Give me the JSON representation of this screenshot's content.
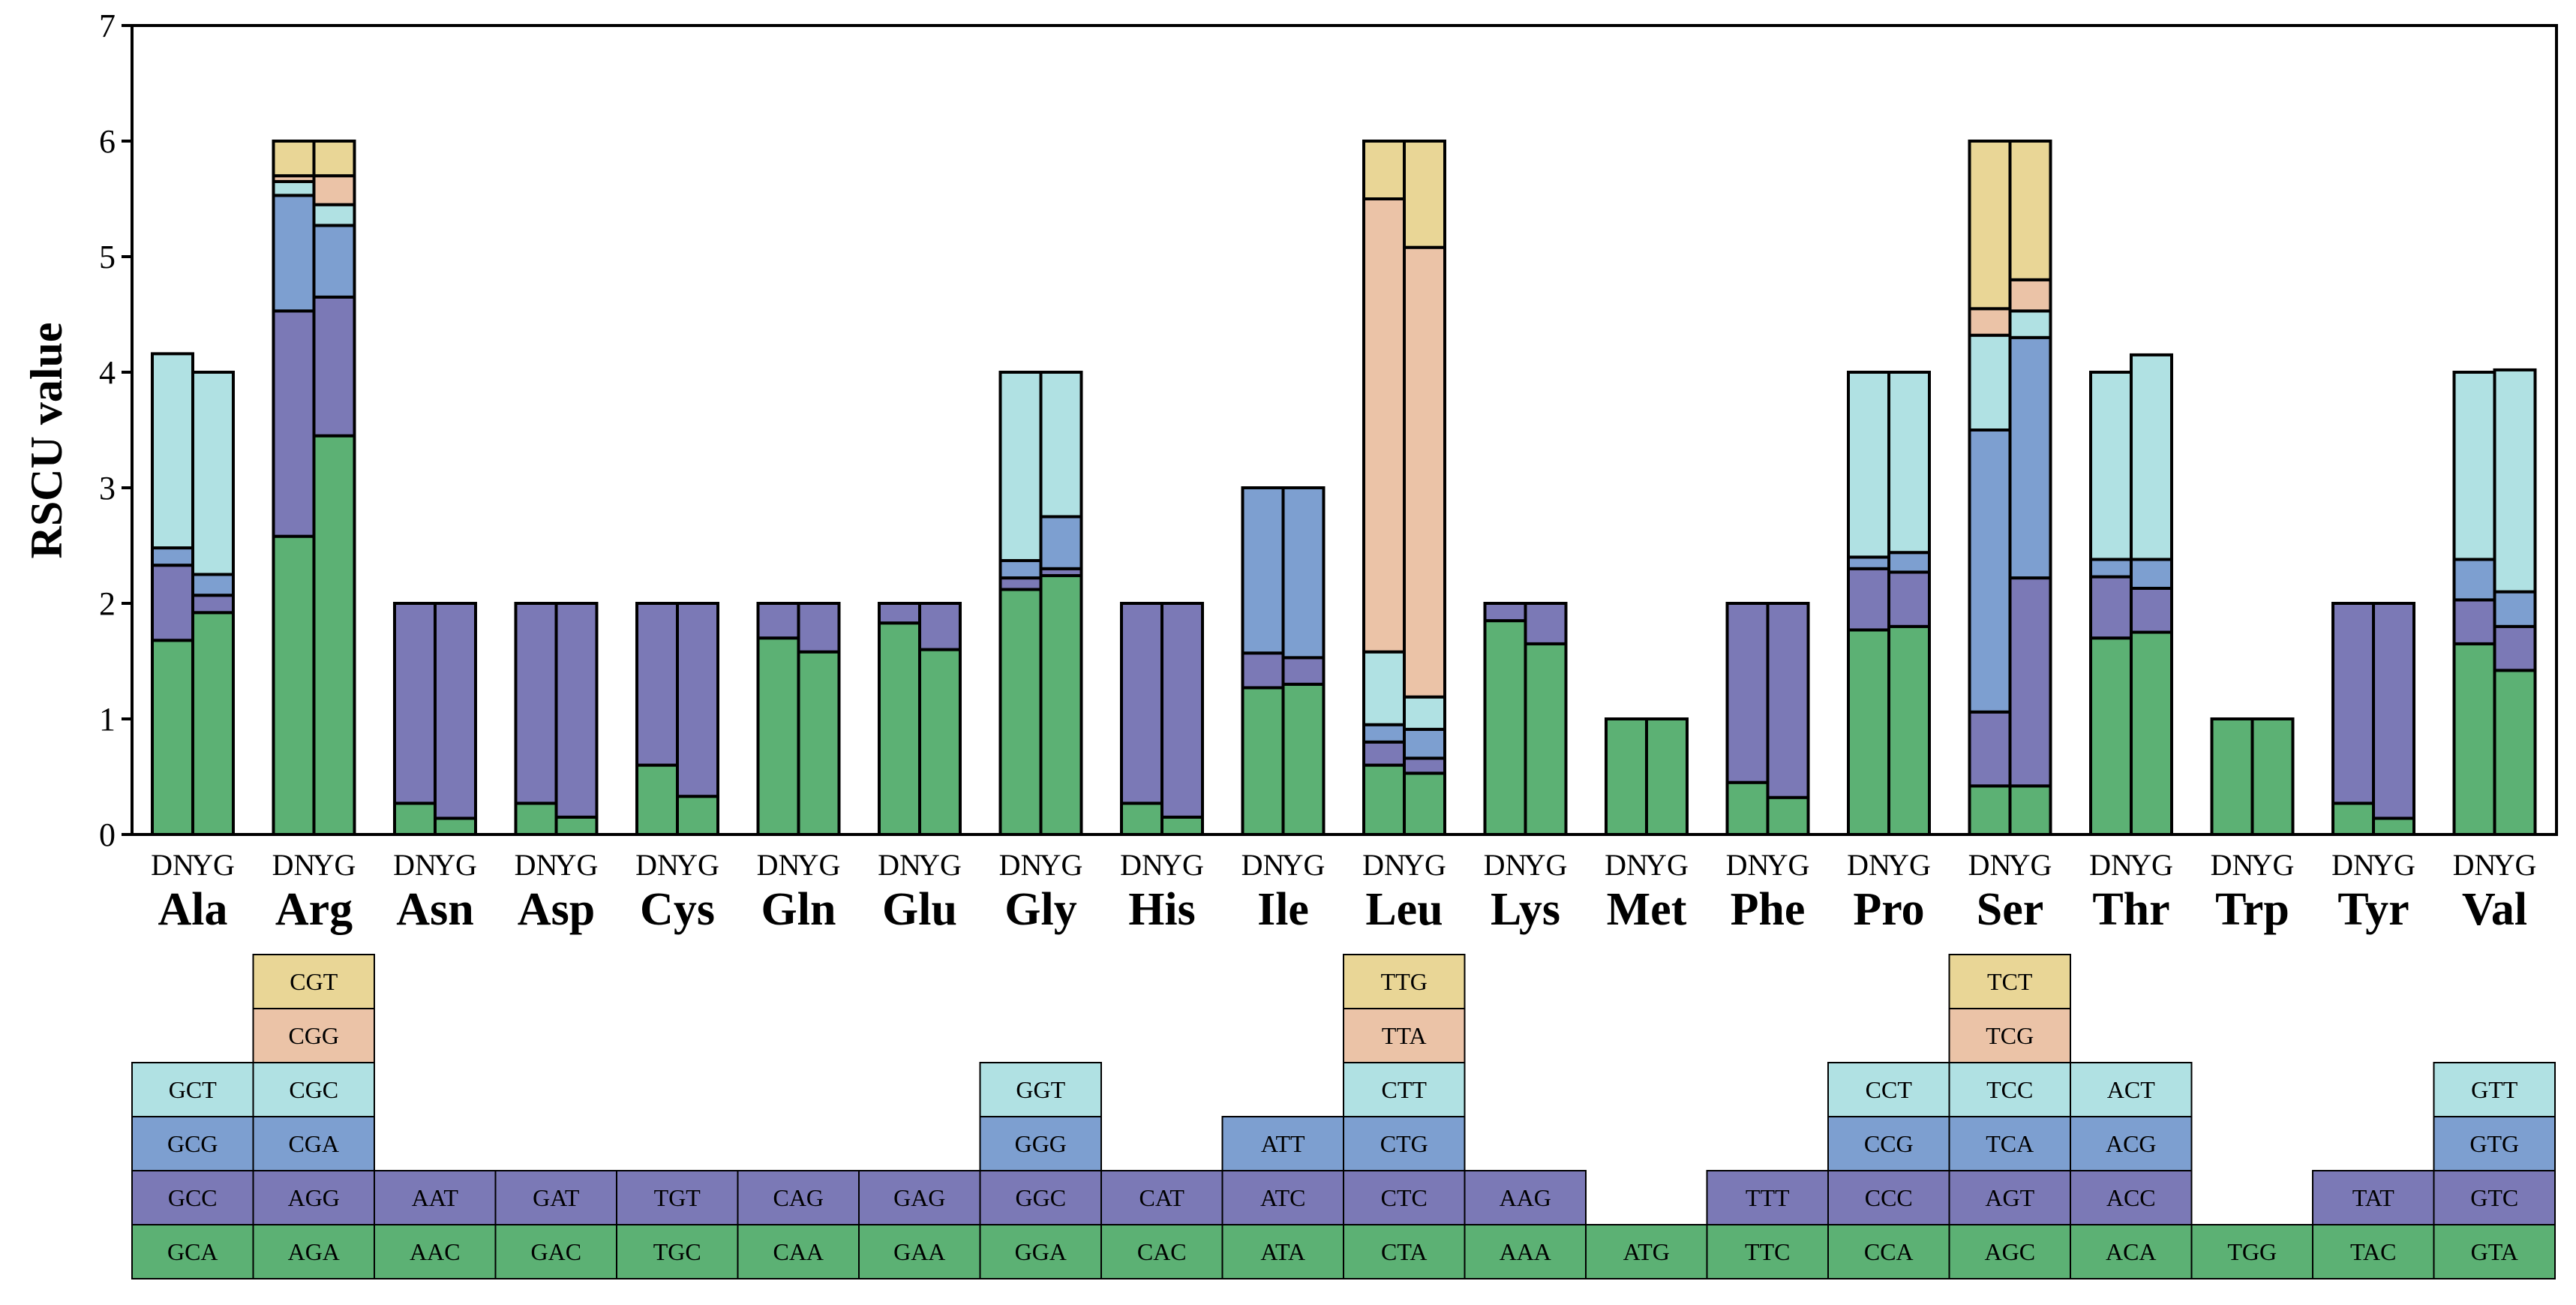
{
  "chart_data": {
    "type": "bar",
    "stacked": true,
    "ylabel": "RSCU value",
    "ylim": [
      0,
      7
    ],
    "yticks": [
      "0",
      "1",
      "2",
      "3",
      "4",
      "5",
      "6",
      "7"
    ],
    "groups": [
      "DN",
      "YG"
    ],
    "colors": [
      "#5cb174",
      "#7b79b6",
      "#7d9fd0",
      "#b0e1e3",
      "#ebc3a7",
      "#e9d696"
    ],
    "amino_acids": [
      {
        "name": "Ala",
        "codons": [
          "GCA",
          "GCC",
          "GCG",
          "GCT"
        ],
        "DN": [
          1.68,
          0.65,
          0.15,
          1.68
        ],
        "YG": [
          1.92,
          0.15,
          0.18,
          1.75
        ]
      },
      {
        "name": "Arg",
        "codons": [
          "AGA",
          "AGG",
          "CGA",
          "CGC",
          "CGG",
          "CGT"
        ],
        "DN": [
          2.58,
          1.95,
          1.0,
          0.12,
          0.05,
          0.3
        ],
        "YG": [
          3.45,
          1.2,
          0.62,
          0.18,
          0.25,
          0.3
        ]
      },
      {
        "name": "Asn",
        "codons": [
          "AAC",
          "AAT"
        ],
        "DN": [
          0.27,
          1.73
        ],
        "YG": [
          0.14,
          1.86
        ]
      },
      {
        "name": "Asp",
        "codons": [
          "GAC",
          "GAT"
        ],
        "DN": [
          0.27,
          1.73
        ],
        "YG": [
          0.15,
          1.85
        ]
      },
      {
        "name": "Cys",
        "codons": [
          "TGC",
          "TGT"
        ],
        "DN": [
          0.6,
          1.4
        ],
        "YG": [
          0.33,
          1.67
        ]
      },
      {
        "name": "Gln",
        "codons": [
          "CAA",
          "CAG"
        ],
        "DN": [
          1.7,
          0.3
        ],
        "YG": [
          1.58,
          0.42
        ]
      },
      {
        "name": "Glu",
        "codons": [
          "GAA",
          "GAG"
        ],
        "DN": [
          1.83,
          0.17
        ],
        "YG": [
          1.6,
          0.4
        ]
      },
      {
        "name": "Gly",
        "codons": [
          "GGA",
          "GGC",
          "GGG",
          "GGT"
        ],
        "DN": [
          2.12,
          0.1,
          0.15,
          1.63
        ],
        "YG": [
          2.24,
          0.06,
          0.45,
          1.25
        ]
      },
      {
        "name": "His",
        "codons": [
          "CAC",
          "CAT"
        ],
        "DN": [
          0.27,
          1.73
        ],
        "YG": [
          0.15,
          1.85
        ]
      },
      {
        "name": "Ile",
        "codons": [
          "ATA",
          "ATC",
          "ATT"
        ],
        "DN": [
          1.27,
          0.3,
          1.43
        ],
        "YG": [
          1.3,
          0.23,
          1.47
        ]
      },
      {
        "name": "Leu",
        "codons": [
          "CTA",
          "CTC",
          "CTG",
          "CTT",
          "TTA",
          "TTG"
        ],
        "DN": [
          0.6,
          0.2,
          0.15,
          0.63,
          3.92,
          0.5
        ],
        "YG": [
          0.53,
          0.13,
          0.25,
          0.28,
          3.89,
          0.92
        ]
      },
      {
        "name": "Lys",
        "codons": [
          "AAA",
          "AAG"
        ],
        "DN": [
          1.85,
          0.15
        ],
        "YG": [
          1.65,
          0.35
        ]
      },
      {
        "name": "Met",
        "codons": [
          "ATG"
        ],
        "DN": [
          1.0
        ],
        "YG": [
          1.0
        ]
      },
      {
        "name": "Phe",
        "codons": [
          "TTC",
          "TTT"
        ],
        "DN": [
          0.45,
          1.55
        ],
        "YG": [
          0.32,
          1.68
        ]
      },
      {
        "name": "Pro",
        "codons": [
          "CCA",
          "CCC",
          "CCG",
          "CCT"
        ],
        "DN": [
          1.77,
          0.53,
          0.1,
          1.6
        ],
        "YG": [
          1.8,
          0.47,
          0.17,
          1.56
        ]
      },
      {
        "name": "Ser",
        "codons": [
          "AGC",
          "AGT",
          "TCA",
          "TCC",
          "TCG",
          "TCT"
        ],
        "DN": [
          0.42,
          0.64,
          2.44,
          0.82,
          0.23,
          1.45
        ],
        "YG": [
          0.42,
          1.8,
          2.08,
          0.23,
          0.27,
          1.2
        ]
      },
      {
        "name": "Thr",
        "codons": [
          "ACA",
          "ACC",
          "ACG",
          "ACT"
        ],
        "DN": [
          1.7,
          0.53,
          0.15,
          1.62
        ],
        "YG": [
          1.75,
          0.38,
          0.25,
          1.77
        ]
      },
      {
        "name": "Trp",
        "codons": [
          "TGG"
        ],
        "DN": [
          1.0
        ],
        "YG": [
          1.0
        ]
      },
      {
        "name": "Tyr",
        "codons": [
          "TAC",
          "TAT"
        ],
        "DN": [
          0.27,
          1.73
        ],
        "YG": [
          0.14,
          1.86
        ]
      },
      {
        "name": "Val",
        "codons": [
          "GTA",
          "GTC",
          "GTG",
          "GTT"
        ],
        "DN": [
          1.65,
          0.38,
          0.35,
          1.62
        ],
        "YG": [
          1.42,
          0.38,
          0.3,
          1.92
        ]
      }
    ]
  }
}
